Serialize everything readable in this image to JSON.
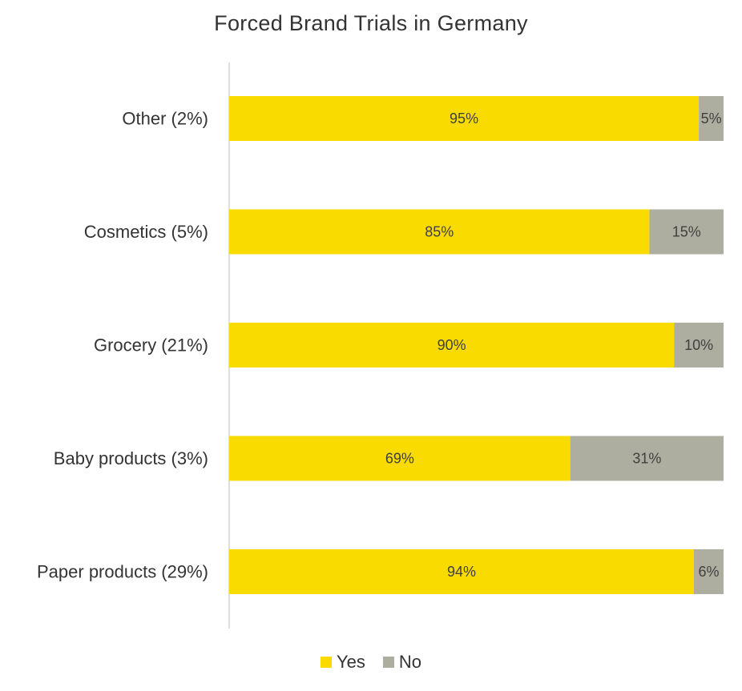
{
  "chart_data": {
    "type": "bar",
    "orientation": "horizontal",
    "stacked": true,
    "title": "Forced Brand Trials in Germany",
    "categories": [
      "Other (2%)",
      "Cosmetics (5%)",
      "Grocery (21%)",
      "Baby products (3%)",
      "Paper products (29%)"
    ],
    "series": [
      {
        "name": "Yes",
        "color": "#FADB00",
        "values": [
          95,
          85,
          90,
          69,
          94
        ],
        "labels": [
          "95%",
          "85%",
          "90%",
          "69%",
          "94%"
        ]
      },
      {
        "name": "No",
        "color": "#ADADA0",
        "values": [
          5,
          15,
          10,
          31,
          6
        ],
        "labels": [
          "5%",
          "15%",
          "10%",
          "31%",
          "6%"
        ]
      }
    ],
    "xlim": [
      0,
      100
    ],
    "grid": false,
    "legend_position": "bottom"
  }
}
